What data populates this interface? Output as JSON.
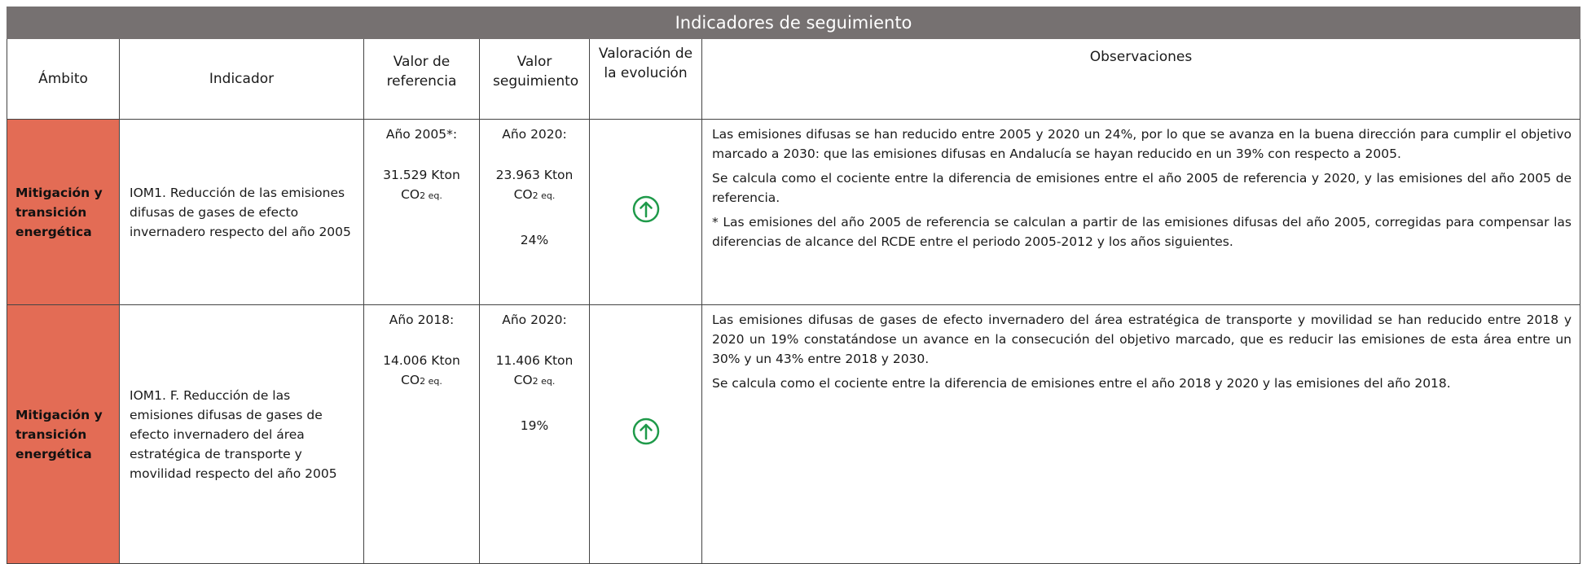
{
  "header": {
    "title": "Indicadores de seguimiento",
    "columns": [
      "Ámbito",
      "Indicador",
      "Valor de referencia",
      "Valor seguimiento",
      "Valoración de la evolución",
      "Observaciones"
    ]
  },
  "table": {
    "rows": [
      {
        "ambito": "Mitigación y transición energética",
        "indicador": "IOM1. Reducción de las emisiones difusas de gases de efecto invernadero respecto del año 2005",
        "referencia": {
          "year": "Año 2005*:",
          "value": "31.529 Kton",
          "unit": "CO",
          "unit_sub": "2 eq."
        },
        "seguimiento": {
          "year": "Año 2020:",
          "value": "23.963 Kton",
          "unit": "CO",
          "unit_sub": "2 eq.",
          "percent": "24%"
        },
        "observaciones": [
          "Las emisiones difusas se han reducido entre 2005 y 2020 un 24%, por lo que se avanza en la buena dirección para cumplir el objetivo marcado a 2030: que las emisiones difusas en Andalucía se hayan reducido en un 39% con respecto a 2005.",
          "Se calcula como el cociente entre la diferencia de emisiones entre el año 2005 de referencia y 2020, y las emisiones del año 2005 de referencia.",
          "* Las emisiones del año 2005 de referencia se calculan a partir de las emisiones difusas del año 2005, corregidas para compensar las diferencias de alcance del RCDE entre el periodo 2005-2012 y los años siguientes."
        ]
      },
      {
        "ambito": "Mitigación y transición energética",
        "indicador": "IOM1. F. Reducción de las emisiones difusas de gases de efecto invernadero del área estratégica de transporte y movilidad respecto del año 2005",
        "referencia": {
          "year": "Año 2018:",
          "value": "14.006 Kton",
          "unit": "CO",
          "unit_sub": "2 eq."
        },
        "seguimiento": {
          "year": "Año 2020:",
          "value": "11.406 Kton",
          "unit": "CO",
          "unit_sub": "2 eq.",
          "percent": "19%"
        },
        "observaciones": [
          "Las emisiones difusas de gases de efecto invernadero del área estratégica de transporte y movilidad se han reducido entre 2018 y 2020 un 19% constatándose un avance en la consecución del objetivo marcado, que es reducir las emisiones de esta área entre un 30% y un 43% entre 2018 y 2030.",
          "Se calcula como el cociente entre la diferencia de emisiones entre el año 2018 y 2020 y las emisiones del año 2018."
        ]
      }
    ]
  }
}
